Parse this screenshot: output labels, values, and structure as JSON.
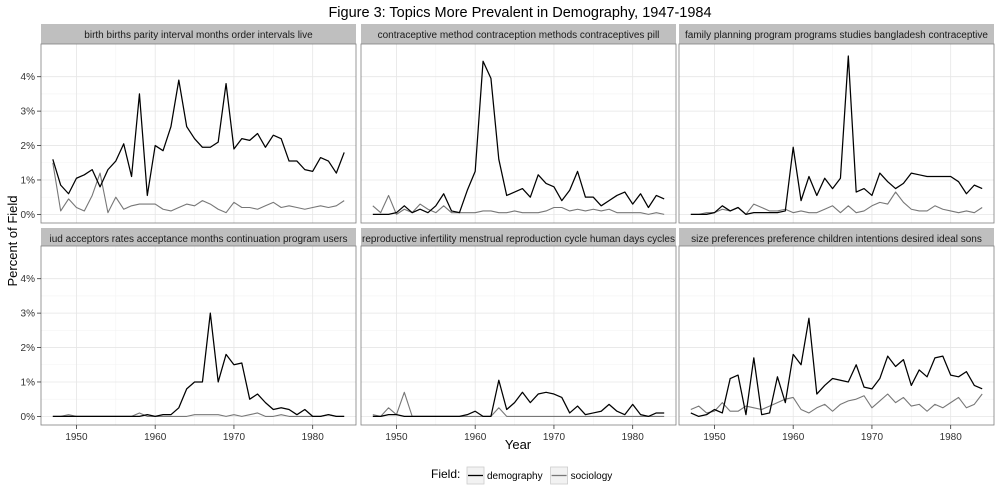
{
  "figure": {
    "title": "Figure 3: Topics More Prevalent in Demography, 1947-1984",
    "xlabel": "Year",
    "ylabel": "Percent of Field",
    "legend_title": "Field:"
  },
  "chart_data": {
    "type": "line",
    "facets": 6,
    "x_ticks": [
      1950,
      1960,
      1970,
      1980
    ],
    "xlim": [
      1945.5,
      1985.5
    ],
    "y_ticks": [
      0,
      1,
      2,
      3,
      4
    ],
    "y_tick_labels": [
      "0%",
      "1%",
      "2%",
      "3%",
      "4%"
    ],
    "ylim": [
      -0.25,
      4.95
    ],
    "legend": {
      "placement": "bottom",
      "entries": [
        {
          "name": "demography",
          "color": "#000000"
        },
        {
          "name": "sociology",
          "color": "#777777"
        }
      ]
    },
    "x": [
      1947,
      1948,
      1949,
      1950,
      1951,
      1952,
      1953,
      1954,
      1955,
      1956,
      1957,
      1958,
      1959,
      1960,
      1961,
      1962,
      1963,
      1964,
      1965,
      1966,
      1967,
      1968,
      1969,
      1970,
      1971,
      1972,
      1973,
      1974,
      1975,
      1976,
      1977,
      1978,
      1979,
      1980,
      1981,
      1982,
      1983,
      1984
    ],
    "panels": [
      {
        "title": "birth births parity interval months order intervals live",
        "series": [
          {
            "name": "demography",
            "values": [
              1.6,
              0.85,
              0.6,
              1.05,
              1.15,
              1.3,
              0.8,
              1.3,
              1.55,
              2.05,
              1.1,
              3.5,
              0.55,
              2.0,
              1.85,
              2.55,
              3.9,
              2.55,
              2.2,
              1.95,
              1.95,
              2.1,
              3.8,
              1.9,
              2.2,
              2.15,
              2.35,
              1.95,
              2.3,
              2.2,
              1.55,
              1.55,
              1.3,
              1.25,
              1.65,
              1.55,
              1.2,
              1.8
            ]
          },
          {
            "name": "sociology",
            "values": [
              1.5,
              0.1,
              0.45,
              0.2,
              0.1,
              0.55,
              1.2,
              0.05,
              0.5,
              0.15,
              0.25,
              0.3,
              0.3,
              0.3,
              0.15,
              0.1,
              0.2,
              0.3,
              0.25,
              0.4,
              0.3,
              0.15,
              0.05,
              0.35,
              0.2,
              0.2,
              0.15,
              0.25,
              0.35,
              0.2,
              0.25,
              0.2,
              0.15,
              0.2,
              0.25,
              0.2,
              0.25,
              0.4
            ]
          }
        ]
      },
      {
        "title": "contraceptive method contraception methods contraceptives pill",
        "series": [
          {
            "name": "demography",
            "values": [
              0,
              0,
              0,
              0.05,
              0.25,
              0.05,
              0.15,
              0.05,
              0.25,
              0.6,
              0.1,
              0.05,
              0.7,
              1.25,
              4.45,
              3.95,
              1.6,
              0.55,
              0.65,
              0.75,
              0.5,
              1.15,
              0.9,
              0.8,
              0.4,
              0.7,
              1.25,
              0.5,
              0.5,
              0.25,
              0.4,
              0.55,
              0.65,
              0.3,
              0.6,
              0.2,
              0.55,
              0.45
            ]
          },
          {
            "name": "sociology",
            "values": [
              0.25,
              0.05,
              0.55,
              0,
              0.15,
              0.05,
              0.3,
              0.15,
              0.05,
              0.25,
              0.05,
              0.05,
              0.05,
              0.05,
              0.1,
              0.1,
              0.05,
              0.05,
              0.1,
              0.05,
              0.05,
              0.05,
              0.1,
              0.2,
              0.2,
              0.1,
              0.15,
              0.1,
              0.15,
              0.1,
              0.15,
              0.05,
              0.05,
              0.05,
              0.05,
              0,
              0.05,
              0
            ]
          }
        ]
      },
      {
        "title": "family planning program programs studies bangladesh contraceptive",
        "series": [
          {
            "name": "demography",
            "values": [
              0,
              0,
              0,
              0.05,
              0.25,
              0.1,
              0.2,
              0,
              0.05,
              0.05,
              0.05,
              0.05,
              0.1,
              1.95,
              0.4,
              1.1,
              0.55,
              1.05,
              0.75,
              1.05,
              4.6,
              0.65,
              0.75,
              0.55,
              1.2,
              0.95,
              0.75,
              0.9,
              1.2,
              1.15,
              1.1,
              1.1,
              1.1,
              1.1,
              0.95,
              0.6,
              0.85,
              0.75
            ]
          },
          {
            "name": "sociology",
            "values": [
              0,
              0,
              0.05,
              0.05,
              0.15,
              0.1,
              0.2,
              0,
              0.3,
              0.2,
              0.1,
              0.1,
              0.15,
              0.05,
              0.1,
              0.05,
              0.05,
              0.15,
              0.25,
              0.05,
              0.25,
              0.05,
              0.1,
              0.25,
              0.35,
              0.3,
              0.65,
              0.35,
              0.15,
              0.1,
              0.1,
              0.25,
              0.15,
              0.1,
              0.05,
              0.1,
              0.05,
              0.2
            ]
          }
        ]
      },
      {
        "title": "iud acceptors rates acceptance months continuation program users",
        "series": [
          {
            "name": "demography",
            "values": [
              0,
              0,
              0,
              0,
              0,
              0,
              0,
              0,
              0,
              0,
              0,
              0,
              0.05,
              0,
              0.05,
              0.05,
              0.25,
              0.8,
              1.0,
              1.0,
              3.0,
              1.0,
              1.8,
              1.5,
              1.55,
              0.5,
              0.65,
              0.4,
              0.2,
              0.25,
              0.2,
              0.05,
              0.2,
              0,
              0,
              0.05,
              0,
              0
            ]
          },
          {
            "name": "sociology",
            "values": [
              0,
              0,
              0.05,
              0,
              0,
              0,
              0,
              0,
              0,
              0,
              0,
              0.1,
              0,
              0,
              0,
              0,
              0,
              0,
              0.05,
              0.05,
              0.05,
              0.05,
              0,
              0.05,
              0,
              0.05,
              0.1,
              0,
              0,
              0.05,
              0,
              0,
              0,
              0,
              0,
              0.05,
              0,
              0
            ]
          }
        ]
      },
      {
        "title": "reproductive infertility menstrual reproduction cycle human days cycles",
        "series": [
          {
            "name": "demography",
            "values": [
              0,
              0,
              0.05,
              0.05,
              0,
              0,
              0,
              0,
              0,
              0,
              0,
              0,
              0.05,
              0.15,
              0,
              0,
              1.05,
              0.2,
              0.4,
              0.7,
              0.4,
              0.65,
              0.7,
              0.65,
              0.55,
              0.1,
              0.3,
              0.05,
              0.1,
              0.15,
              0.35,
              0.15,
              0.05,
              0.35,
              0.05,
              0,
              0.1,
              0.1
            ]
          },
          {
            "name": "sociology",
            "values": [
              0.05,
              0,
              0.25,
              0.05,
              0.7,
              0,
              0,
              0,
              0,
              0,
              0,
              0,
              0,
              0,
              0,
              0,
              0.25,
              0,
              0,
              0,
              0,
              0,
              0,
              0,
              0,
              0,
              0,
              0,
              0,
              0,
              0,
              0,
              0,
              0,
              0,
              0,
              0,
              0
            ]
          }
        ]
      },
      {
        "title": "size preferences preference children intentions desired ideal sons",
        "series": [
          {
            "name": "demography",
            "values": [
              0.1,
              0,
              0.05,
              0.2,
              0.1,
              1.1,
              1.2,
              0.05,
              1.7,
              0.05,
              0.1,
              1.15,
              0.4,
              1.8,
              1.5,
              2.85,
              0.65,
              0.9,
              1.1,
              1.05,
              1.0,
              1.5,
              0.85,
              0.8,
              1.1,
              1.75,
              1.45,
              1.65,
              0.9,
              1.35,
              1.15,
              1.7,
              1.75,
              1.2,
              1.15,
              1.3,
              0.9,
              0.8
            ]
          },
          {
            "name": "sociology",
            "values": [
              0.2,
              0.3,
              0.1,
              0.15,
              0.4,
              0.15,
              0.15,
              0.3,
              0.25,
              0.2,
              0.3,
              0.4,
              0.5,
              0.55,
              0.2,
              0.1,
              0.25,
              0.35,
              0.15,
              0.35,
              0.45,
              0.5,
              0.6,
              0.25,
              0.45,
              0.65,
              0.4,
              0.55,
              0.3,
              0.35,
              0.15,
              0.35,
              0.25,
              0.4,
              0.55,
              0.25,
              0.35,
              0.65
            ]
          }
        ]
      }
    ]
  }
}
